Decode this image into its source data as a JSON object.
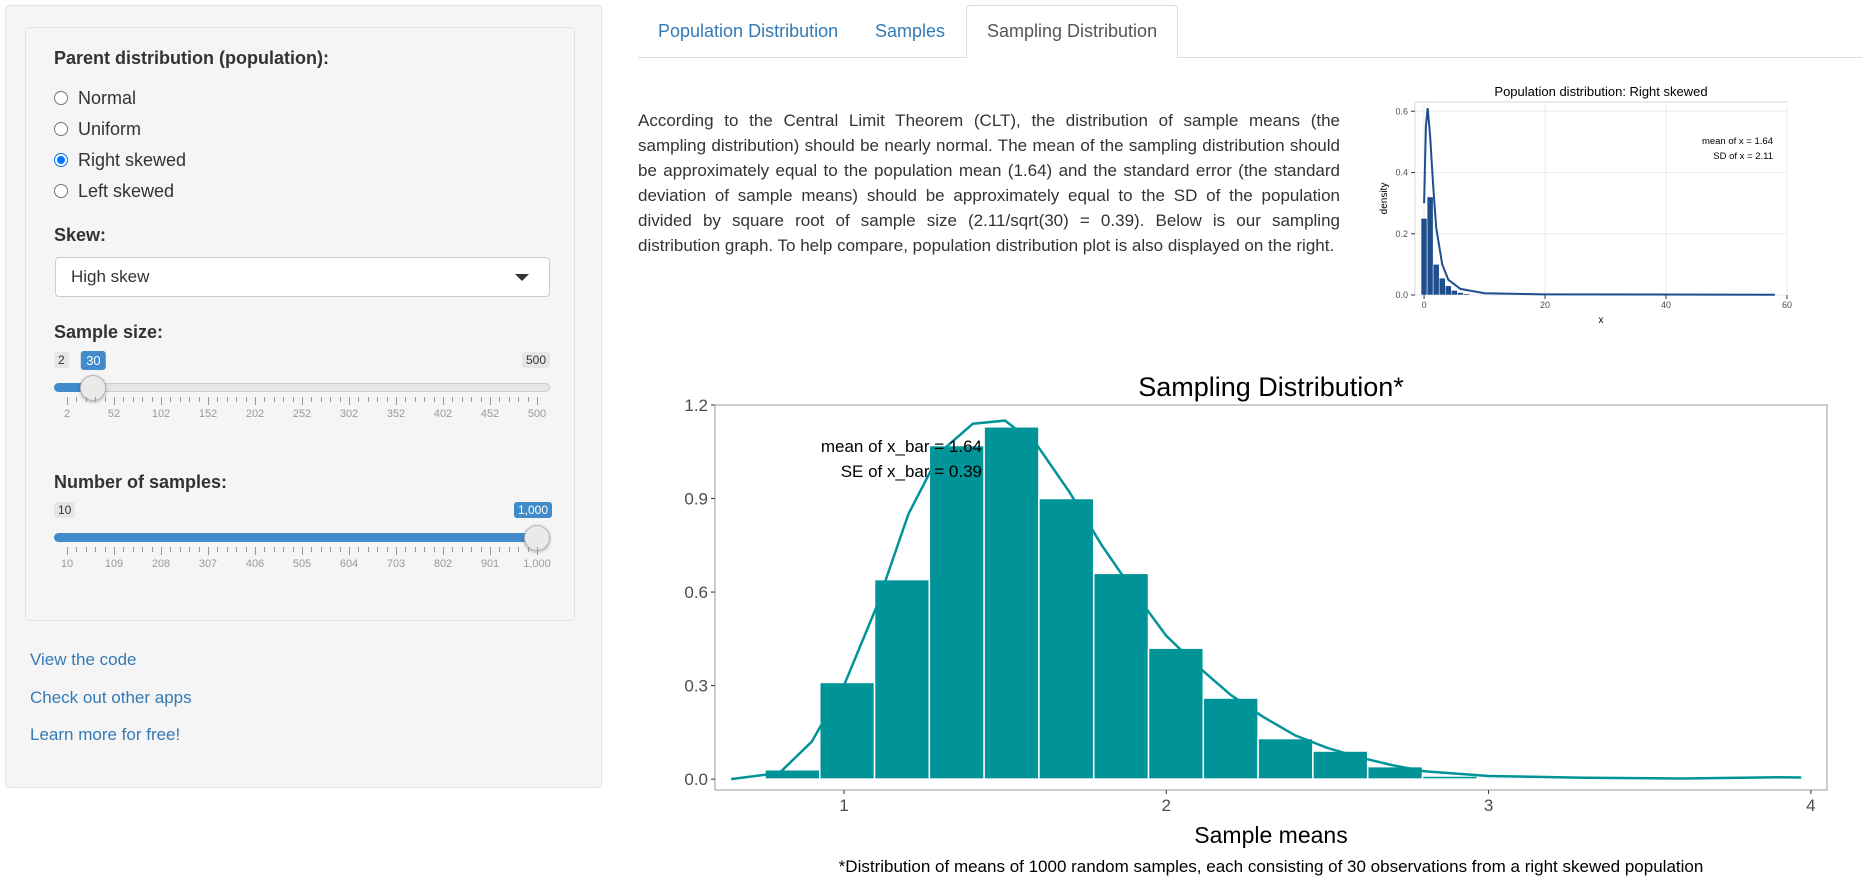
{
  "sidebar": {
    "parent_label": "Parent distribution (population):",
    "radios": [
      {
        "label": "Normal",
        "checked": false
      },
      {
        "label": "Uniform",
        "checked": false
      },
      {
        "label": "Right skewed",
        "checked": true
      },
      {
        "label": "Left skewed",
        "checked": false
      }
    ],
    "skew_label": "Skew:",
    "skew_value": "High skew",
    "sample_size": {
      "label": "Sample size:",
      "min": "2",
      "max": "500",
      "value": "30",
      "min_n": 2,
      "max_n": 500,
      "value_n": 30,
      "ticks": [
        "2",
        "52",
        "102",
        "152",
        "202",
        "252",
        "302",
        "352",
        "402",
        "452",
        "500"
      ]
    },
    "num_samples": {
      "label": "Number of samples:",
      "min": "10",
      "max": "1,000",
      "value": "1,000",
      "min_n": 10,
      "max_n": 1000,
      "value_n": 1000,
      "ticks": [
        "10",
        "109",
        "208",
        "307",
        "406",
        "505",
        "604",
        "703",
        "802",
        "901",
        "1,000"
      ]
    },
    "links": [
      "View the code",
      "Check out other apps",
      "Learn more for free!"
    ]
  },
  "tabs": [
    "Population Distribution",
    "Samples",
    "Sampling Distribution"
  ],
  "active_tab": 2,
  "description": "According to the Central Limit Theorem (CLT), the distribution of sample means (the sampling distribution) should be nearly normal. The mean of the sampling distribution should be approximately equal to the population mean (1.64) and the standard error (the standard deviation of sample means) should be approximately equal to the SD of the population divided by square root of sample size (2.11/sqrt(30) = 0.39). Below is our sampling distribution graph. To help compare, population distribution plot is also displayed on the right.",
  "colors": {
    "accent": "#428bca",
    "link": "#337ab7",
    "teal": "#009499",
    "navy": "#1f4e8c"
  },
  "chart_data": [
    {
      "type": "bar",
      "title": "Population distribution: Right skewed",
      "xlabel": "x",
      "ylabel": "density",
      "xlim": [
        -1.5,
        60
      ],
      "ylim": [
        0,
        0.63
      ],
      "x_ticks": [
        0,
        20,
        40,
        60
      ],
      "y_ticks": [
        0.0,
        0.2,
        0.4,
        0.6
      ],
      "y_tick_labels": [
        "0.0",
        "0.2",
        "0.4",
        "0.6"
      ],
      "bin_width": 1,
      "bins": [
        {
          "x": 0,
          "value": 0.25
        },
        {
          "x": 1,
          "value": 0.32
        },
        {
          "x": 2,
          "value": 0.1
        },
        {
          "x": 3,
          "value": 0.055
        },
        {
          "x": 4,
          "value": 0.03
        },
        {
          "x": 5,
          "value": 0.015
        },
        {
          "x": 6,
          "value": 0.008
        },
        {
          "x": 7,
          "value": 0.004
        }
      ],
      "density_curve": [
        [
          0,
          0.3
        ],
        [
          0.3,
          0.55
        ],
        [
          0.6,
          0.61
        ],
        [
          1,
          0.52
        ],
        [
          1.5,
          0.36
        ],
        [
          2,
          0.22
        ],
        [
          3,
          0.1
        ],
        [
          4,
          0.05
        ],
        [
          6,
          0.02
        ],
        [
          10,
          0.006
        ],
        [
          20,
          0.002
        ],
        [
          58,
          0.001
        ]
      ],
      "annotations": [
        "mean of x = 1.64",
        "SD of x = 2.11"
      ],
      "grid": true
    },
    {
      "type": "bar",
      "title": "Sampling Distribution*",
      "xlabel": "Sample means",
      "ylabel": "",
      "xlim": [
        0.6,
        4.05
      ],
      "ylim": [
        -0.035,
        1.2
      ],
      "x_ticks": [
        1,
        2,
        3,
        4
      ],
      "y_ticks": [
        0.0,
        0.3,
        0.6,
        0.9,
        1.2
      ],
      "y_tick_labels": [
        "0.0",
        "0.3",
        "0.6",
        "0.9",
        "1.2"
      ],
      "bin_width": 0.17,
      "bins": [
        {
          "x": 0.84,
          "value": 0.03
        },
        {
          "x": 1.01,
          "value": 0.31
        },
        {
          "x": 1.18,
          "value": 0.64
        },
        {
          "x": 1.35,
          "value": 1.07
        },
        {
          "x": 1.52,
          "value": 1.13
        },
        {
          "x": 1.69,
          "value": 0.9
        },
        {
          "x": 1.86,
          "value": 0.66
        },
        {
          "x": 2.03,
          "value": 0.42
        },
        {
          "x": 2.2,
          "value": 0.26
        },
        {
          "x": 2.37,
          "value": 0.13
        },
        {
          "x": 2.54,
          "value": 0.09
        },
        {
          "x": 2.71,
          "value": 0.04
        },
        {
          "x": 2.88,
          "value": 0.01
        },
        {
          "x": 3.05,
          "value": 0.005
        }
      ],
      "density_curve": [
        [
          0.65,
          0.0
        ],
        [
          0.8,
          0.02
        ],
        [
          0.9,
          0.12
        ],
        [
          1.0,
          0.3
        ],
        [
          1.1,
          0.55
        ],
        [
          1.2,
          0.85
        ],
        [
          1.3,
          1.05
        ],
        [
          1.4,
          1.14
        ],
        [
          1.5,
          1.15
        ],
        [
          1.6,
          1.07
        ],
        [
          1.7,
          0.92
        ],
        [
          1.8,
          0.75
        ],
        [
          1.9,
          0.6
        ],
        [
          2.0,
          0.46
        ],
        [
          2.1,
          0.36
        ],
        [
          2.2,
          0.27
        ],
        [
          2.3,
          0.2
        ],
        [
          2.4,
          0.14
        ],
        [
          2.5,
          0.1
        ],
        [
          2.6,
          0.07
        ],
        [
          2.7,
          0.045
        ],
        [
          2.8,
          0.025
        ],
        [
          3.0,
          0.01
        ],
        [
          3.3,
          0.004
        ],
        [
          3.6,
          0.002
        ],
        [
          3.9,
          0.006
        ],
        [
          3.97,
          0.005
        ]
      ],
      "annotations": [
        "mean of x_bar = 1.64",
        "SE of x_bar = 0.39"
      ],
      "caption": "*Distribution of means of 1000 random samples, each consisting of 30 observations from a right skewed population",
      "grid": false
    }
  ]
}
